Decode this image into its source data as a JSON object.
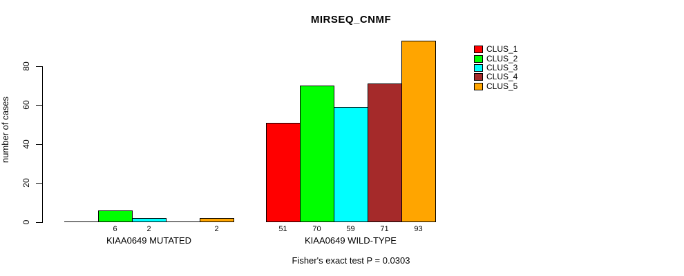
{
  "chart_data": {
    "type": "bar",
    "title": "MIRSEQ_CNMF",
    "xlabel": "",
    "ylabel": "number of cases",
    "categories": [
      "KIAA0649 MUTATED",
      "KIAA0649 WILD-TYPE"
    ],
    "series": [
      {
        "name": "CLUS_1",
        "color": "#FF0000",
        "values": [
          0,
          51
        ]
      },
      {
        "name": "CLUS_2",
        "color": "#00FF00",
        "values": [
          6,
          70
        ]
      },
      {
        "name": "CLUS_3",
        "color": "#00FFFF",
        "values": [
          2,
          59
        ]
      },
      {
        "name": "CLUS_4",
        "color": "#A52A2A",
        "values": [
          0,
          71
        ]
      },
      {
        "name": "CLUS_5",
        "color": "#FFA500",
        "values": [
          2,
          93
        ]
      }
    ],
    "yticks": [
      0,
      20,
      40,
      60,
      80
    ],
    "ylim": [
      0,
      93
    ],
    "grid": false,
    "show_value_labels": true,
    "zero_values_unlabeled": true,
    "legend_position": "right",
    "annotation": "Fisher's exact test P = 0.0303",
    "bar_border_color": "#000000",
    "axis_color": "#000000",
    "background_color": "#FFFFFF"
  }
}
